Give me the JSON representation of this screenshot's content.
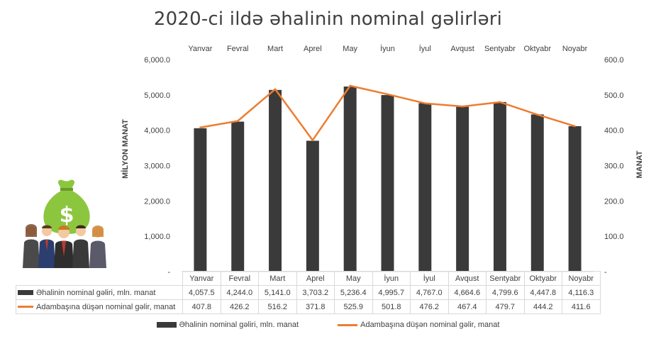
{
  "chart_data": {
    "type": "bar",
    "title": "2020-ci ildə əhalinin nominal gəlirləri",
    "categories": [
      "Yanvar",
      "Fevral",
      "Mart",
      "Aprel",
      "May",
      "İyun",
      "İyul",
      "Avqust",
      "Sentyabr",
      "Oktyabr",
      "Noyabr"
    ],
    "ylabel": "MİLYON MANAT",
    "y2label": "MANAT",
    "ylim": [
      0,
      6000
    ],
    "y2lim": [
      0,
      600
    ],
    "yticks": [
      "-",
      "1,000.0",
      "2,000.0",
      "3,000.0",
      "4,000.0",
      "5,000.0",
      "6,000.0"
    ],
    "y2ticks": [
      "-",
      "100.0",
      "200.0",
      "300.0",
      "400.0",
      "500.0",
      "600.0"
    ],
    "series": [
      {
        "name": "Əhalinin nominal gəliri, mln. manat",
        "type": "bar",
        "axis": "left",
        "color": "#3a3a3a",
        "values": [
          4057.5,
          4244.0,
          5141.0,
          3703.2,
          5236.4,
          4995.7,
          4767.0,
          4664.6,
          4799.6,
          4447.8,
          4116.3
        ],
        "labels": [
          "4,057.5",
          "4,244.0",
          "5,141.0",
          "3,703.2",
          "5,236.4",
          "4,995.7",
          "4,767.0",
          "4,664.6",
          "4,799.6",
          "4,447.8",
          "4,116.3"
        ]
      },
      {
        "name": "Adambaşına düşən nominal gəlir, manat",
        "type": "line",
        "axis": "right",
        "color": "#ed7d31",
        "values": [
          407.8,
          426.2,
          516.2,
          371.8,
          525.9,
          501.8,
          476.2,
          467.4,
          479.7,
          444.2,
          411.6
        ],
        "labels": [
          "407.8",
          "426.2",
          "516.2",
          "371.8",
          "525.9",
          "501.8",
          "476.2",
          "467.4",
          "479.7",
          "444.2",
          "411.6"
        ]
      }
    ],
    "grid": false,
    "legend": "bottom"
  }
}
